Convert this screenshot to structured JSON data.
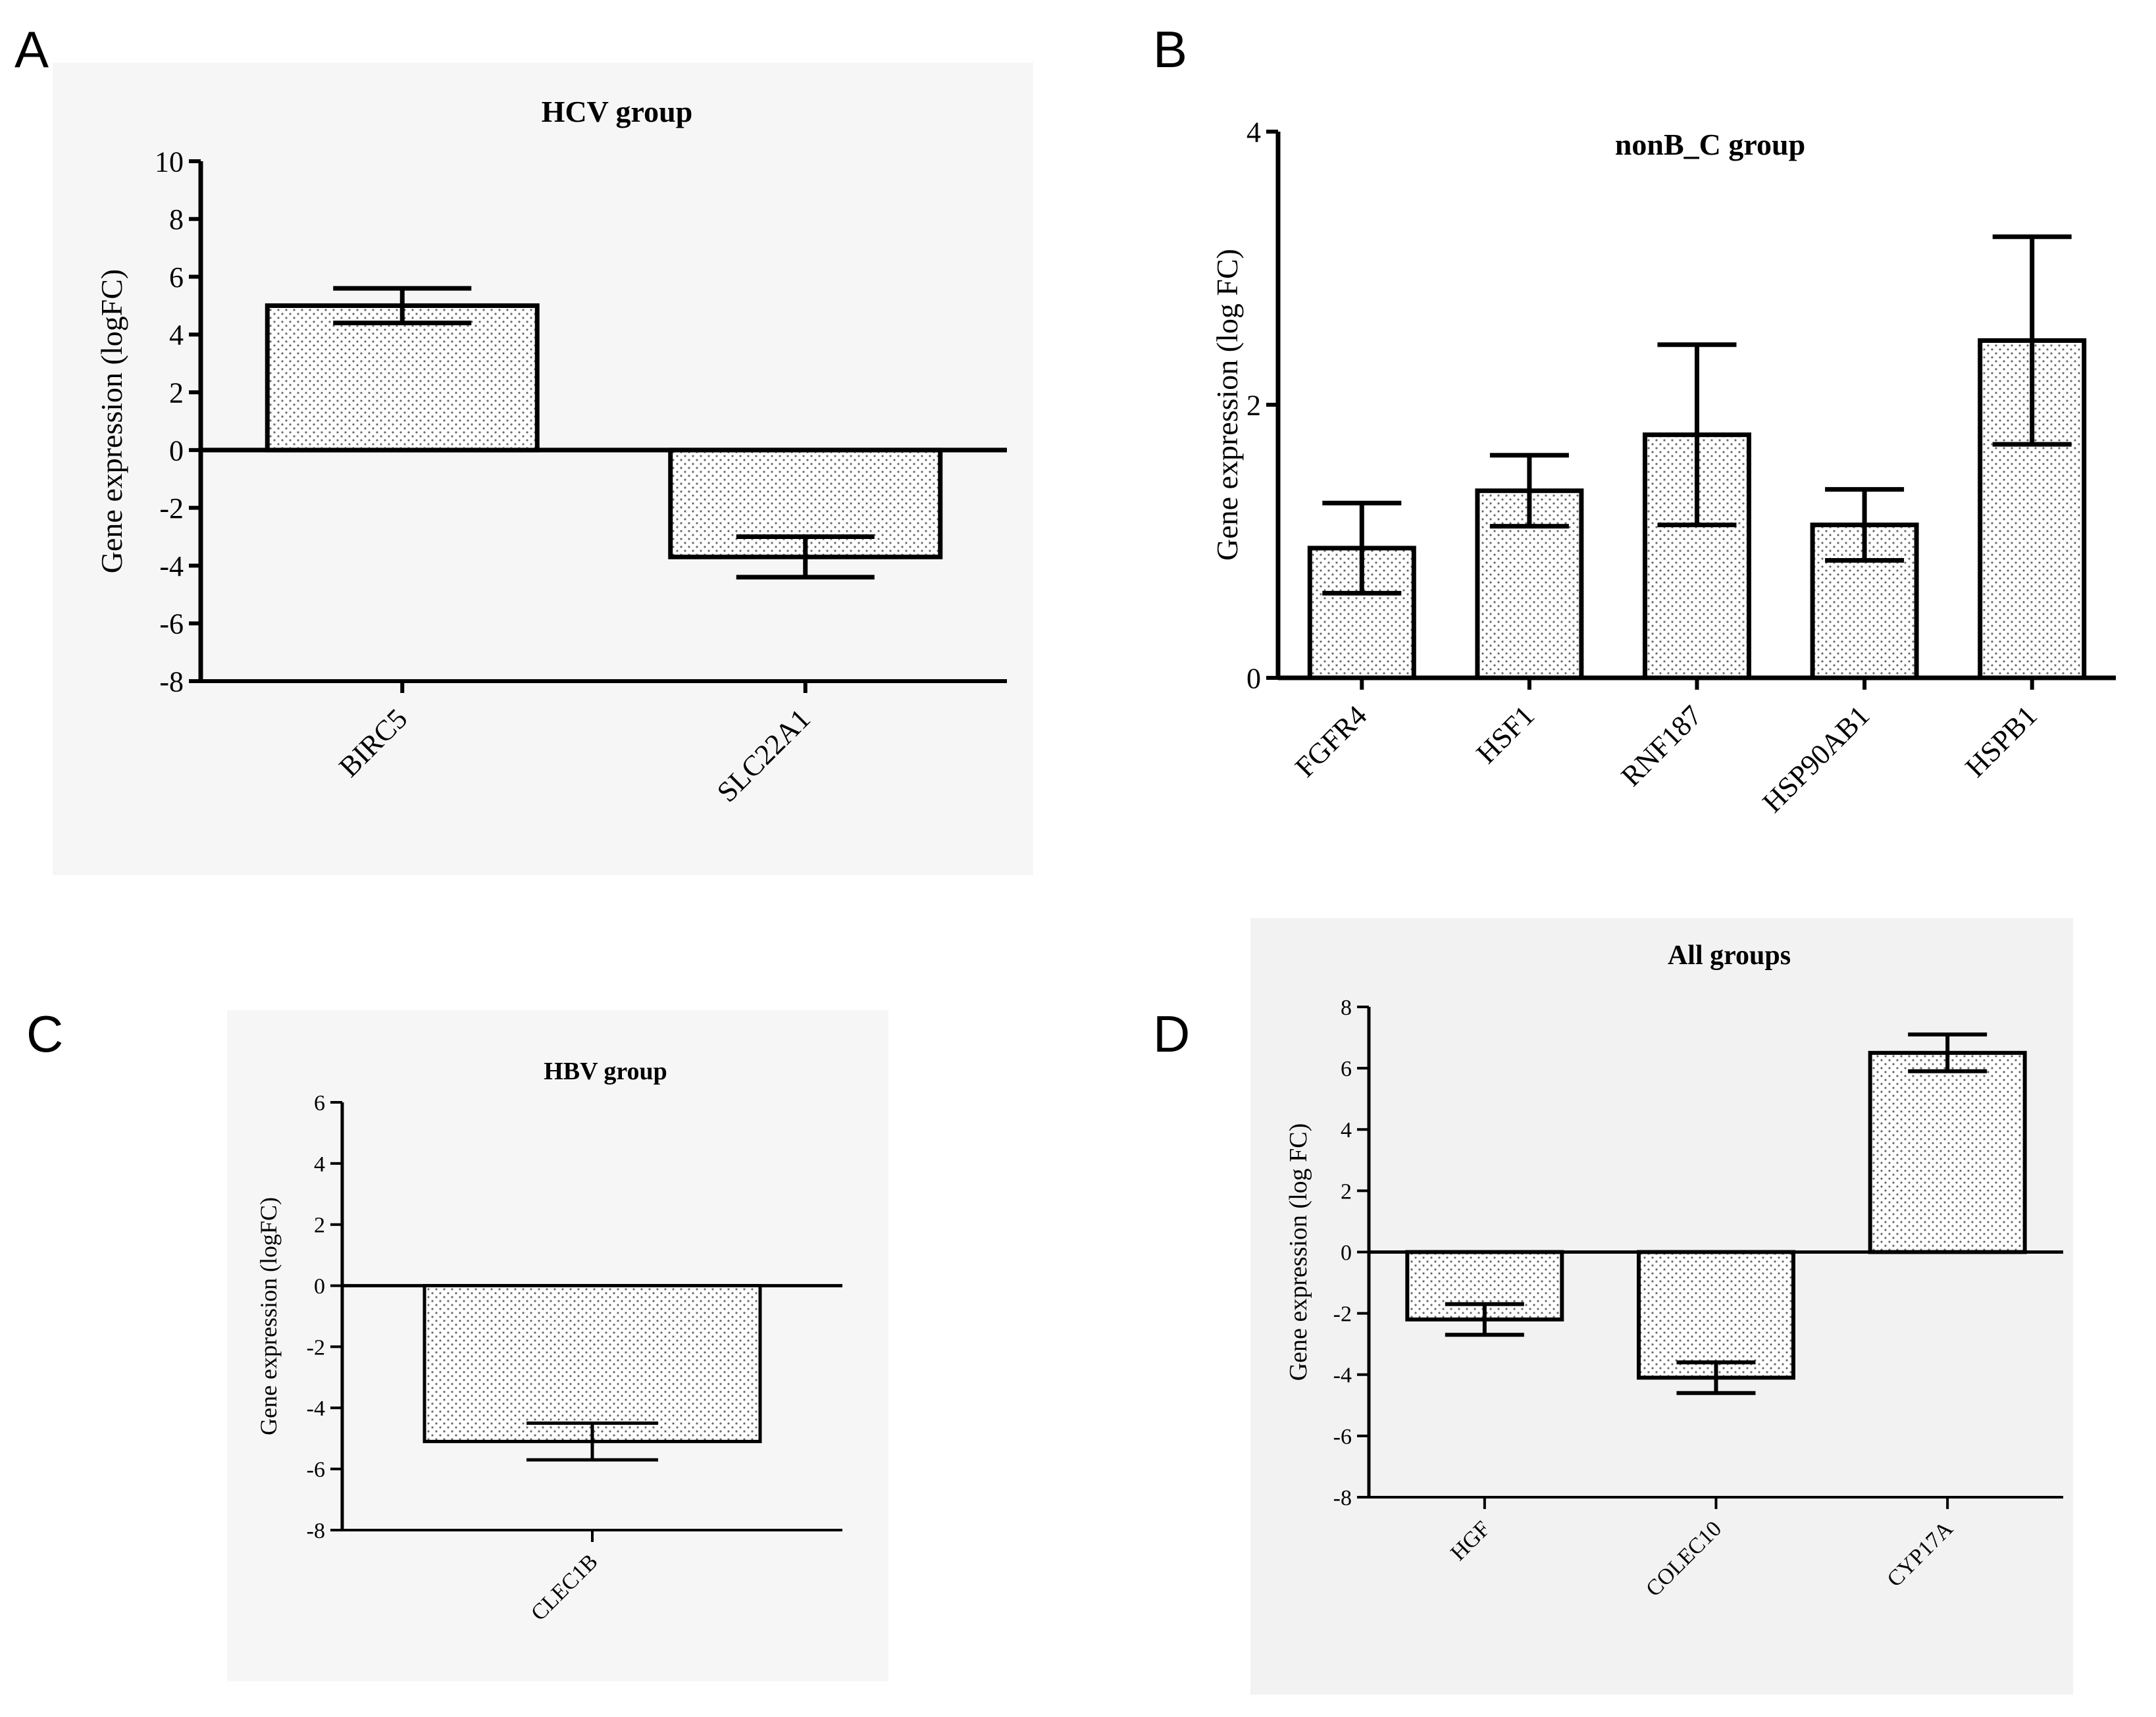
{
  "chart_data": [
    {
      "panel": "A",
      "type": "bar",
      "title": "HCV group",
      "ylabel": "Gene expression (logFC)",
      "xlabel": "",
      "ylim": [
        -8,
        10
      ],
      "yticks": [
        10,
        8,
        6,
        4,
        2,
        0,
        -2,
        -4,
        -6,
        -8
      ],
      "categories": [
        "BIRC5",
        "SLC22A1"
      ],
      "values": [
        5.0,
        -3.7
      ],
      "error": [
        0.6,
        0.7
      ],
      "grid": false
    },
    {
      "panel": "B",
      "type": "bar",
      "title": "nonB_C group",
      "ylabel": "Gene expression (log FC)",
      "xlabel": "",
      "ylim": [
        0,
        4
      ],
      "yticks": [
        4,
        2,
        0
      ],
      "categories": [
        "FGFR4",
        "HSF1",
        "RNF187",
        "HSP90AB1",
        "HSPB1"
      ],
      "values": [
        0.95,
        1.37,
        1.78,
        1.12,
        2.47
      ],
      "error": [
        0.33,
        0.26,
        0.66,
        0.26,
        0.76
      ],
      "grid": false
    },
    {
      "panel": "C",
      "type": "bar",
      "title": "HBV group",
      "ylabel": "Gene expression (logFC)",
      "xlabel": "",
      "ylim": [
        -8,
        6
      ],
      "yticks": [
        6,
        4,
        2,
        0,
        -2,
        -4,
        -6,
        -8
      ],
      "categories": [
        "CLEC1B"
      ],
      "values": [
        -5.1
      ],
      "error": [
        0.6
      ],
      "grid": false
    },
    {
      "panel": "D",
      "type": "bar",
      "title": "All groups",
      "ylabel": "Gene expression (log FC)",
      "xlabel": "",
      "ylim": [
        -8,
        8
      ],
      "yticks": [
        8,
        6,
        4,
        2,
        0,
        -2,
        -4,
        -6,
        -8
      ],
      "categories": [
        "HGF",
        "COLEC10",
        "CYP17A"
      ],
      "values": [
        -2.2,
        -4.1,
        6.5
      ],
      "error": [
        0.5,
        0.5,
        0.6
      ],
      "grid": false
    }
  ]
}
